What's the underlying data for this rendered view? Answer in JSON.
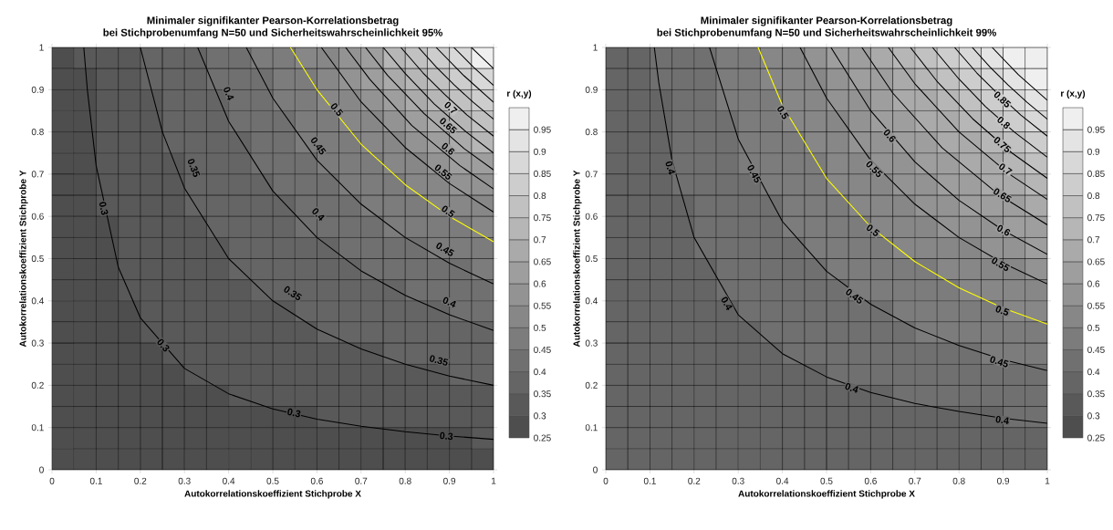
{
  "chart_data": [
    {
      "type": "heatmap",
      "title": "Minimaler signifikanter Pearson-Korrelationsbetrag",
      "subtitle": "bei Stichprobenumfang N=50 und Sicherheitswahrscheinlichkeit 95%",
      "grid": true,
      "xlabel": "Autokorrelationskoeffizient Stichprobe X",
      "ylabel": "Autokorrelationskoeffizient Stichprobe Y",
      "clabel": "r (x,y)",
      "xlim": [
        0,
        1
      ],
      "ylim": [
        0,
        1
      ],
      "xticks": [
        0,
        0.1,
        0.2,
        0.3,
        0.4,
        0.5,
        0.6,
        0.7,
        0.8,
        0.9,
        1
      ],
      "yticks": [
        0,
        0.1,
        0.2,
        0.3,
        0.4,
        0.5,
        0.6,
        0.7,
        0.8,
        0.9,
        1
      ],
      "clim": [
        0.25,
        1
      ],
      "cticks": [
        0.25,
        0.3,
        0.35,
        0.4,
        0.45,
        0.5,
        0.55,
        0.6,
        0.65,
        0.7,
        0.75,
        0.8,
        0.85,
        0.9,
        0.95
      ],
      "cells": [
        [
          0.275,
          0.325,
          0.325,
          0.325,
          0.375,
          0.375,
          0.375,
          0.425,
          0.425,
          0.475,
          0.475,
          0.525,
          0.525,
          0.575,
          0.625,
          0.725,
          0.775,
          0.825,
          0.875,
          0.975
        ],
        [
          0.275,
          0.275,
          0.325,
          0.325,
          0.375,
          0.375,
          0.375,
          0.425,
          0.425,
          0.425,
          0.475,
          0.475,
          0.525,
          0.575,
          0.625,
          0.675,
          0.725,
          0.775,
          0.825,
          0.875
        ],
        [
          0.275,
          0.275,
          0.325,
          0.325,
          0.325,
          0.375,
          0.375,
          0.375,
          0.425,
          0.425,
          0.475,
          0.475,
          0.525,
          0.525,
          0.575,
          0.625,
          0.675,
          0.725,
          0.775,
          0.825
        ],
        [
          0.275,
          0.275,
          0.325,
          0.325,
          0.325,
          0.375,
          0.375,
          0.375,
          0.425,
          0.425,
          0.425,
          0.475,
          0.475,
          0.525,
          0.525,
          0.575,
          0.625,
          0.675,
          0.725,
          0.775
        ],
        [
          0.275,
          0.275,
          0.325,
          0.325,
          0.325,
          0.375,
          0.375,
          0.375,
          0.375,
          0.425,
          0.425,
          0.475,
          0.475,
          0.475,
          0.525,
          0.525,
          0.575,
          0.625,
          0.675,
          0.725
        ],
        [
          0.275,
          0.275,
          0.325,
          0.325,
          0.325,
          0.325,
          0.375,
          0.375,
          0.375,
          0.425,
          0.425,
          0.425,
          0.475,
          0.475,
          0.475,
          0.525,
          0.525,
          0.575,
          0.625,
          0.625
        ],
        [
          0.275,
          0.275,
          0.325,
          0.325,
          0.325,
          0.325,
          0.375,
          0.375,
          0.375,
          0.375,
          0.425,
          0.425,
          0.425,
          0.475,
          0.475,
          0.475,
          0.525,
          0.525,
          0.575,
          0.575
        ],
        [
          0.275,
          0.275,
          0.325,
          0.325,
          0.325,
          0.325,
          0.375,
          0.375,
          0.375,
          0.375,
          0.375,
          0.425,
          0.425,
          0.425,
          0.475,
          0.475,
          0.475,
          0.525,
          0.525,
          0.525
        ],
        [
          0.275,
          0.275,
          0.275,
          0.325,
          0.325,
          0.325,
          0.325,
          0.375,
          0.375,
          0.375,
          0.375,
          0.425,
          0.425,
          0.425,
          0.425,
          0.475,
          0.475,
          0.475,
          0.475,
          0.525
        ],
        [
          0.275,
          0.275,
          0.275,
          0.325,
          0.325,
          0.325,
          0.325,
          0.325,
          0.375,
          0.375,
          0.375,
          0.375,
          0.375,
          0.425,
          0.425,
          0.425,
          0.425,
          0.475,
          0.475,
          0.475
        ],
        [
          0.275,
          0.275,
          0.275,
          0.325,
          0.325,
          0.325,
          0.325,
          0.325,
          0.375,
          0.375,
          0.375,
          0.375,
          0.375,
          0.375,
          0.425,
          0.425,
          0.425,
          0.425,
          0.425,
          0.475
        ],
        [
          0.275,
          0.275,
          0.275,
          0.325,
          0.325,
          0.325,
          0.325,
          0.325,
          0.325,
          0.375,
          0.375,
          0.375,
          0.375,
          0.375,
          0.375,
          0.375,
          0.425,
          0.425,
          0.425,
          0.425
        ],
        [
          0.275,
          0.275,
          0.275,
          0.275,
          0.325,
          0.325,
          0.325,
          0.325,
          0.325,
          0.325,
          0.325,
          0.375,
          0.375,
          0.375,
          0.375,
          0.375,
          0.375,
          0.375,
          0.425,
          0.425
        ],
        [
          0.275,
          0.275,
          0.275,
          0.275,
          0.325,
          0.325,
          0.325,
          0.325,
          0.325,
          0.325,
          0.325,
          0.325,
          0.375,
          0.375,
          0.375,
          0.375,
          0.375,
          0.375,
          0.375,
          0.375
        ],
        [
          0.275,
          0.275,
          0.275,
          0.275,
          0.275,
          0.325,
          0.325,
          0.325,
          0.325,
          0.325,
          0.325,
          0.325,
          0.325,
          0.325,
          0.325,
          0.375,
          0.375,
          0.375,
          0.375,
          0.375
        ],
        [
          0.275,
          0.275,
          0.275,
          0.275,
          0.275,
          0.275,
          0.325,
          0.325,
          0.325,
          0.325,
          0.325,
          0.325,
          0.325,
          0.325,
          0.325,
          0.325,
          0.325,
          0.325,
          0.375,
          0.375
        ],
        [
          0.275,
          0.275,
          0.275,
          0.275,
          0.275,
          0.275,
          0.275,
          0.275,
          0.325,
          0.325,
          0.325,
          0.325,
          0.325,
          0.325,
          0.325,
          0.325,
          0.325,
          0.325,
          0.325,
          0.325
        ],
        [
          0.275,
          0.275,
          0.275,
          0.275,
          0.275,
          0.275,
          0.275,
          0.275,
          0.275,
          0.275,
          0.275,
          0.275,
          0.325,
          0.325,
          0.325,
          0.325,
          0.325,
          0.325,
          0.325,
          0.325
        ],
        [
          0.275,
          0.275,
          0.275,
          0.275,
          0.275,
          0.275,
          0.275,
          0.275,
          0.275,
          0.275,
          0.275,
          0.275,
          0.275,
          0.275,
          0.275,
          0.275,
          0.275,
          0.275,
          0.275,
          0.325
        ],
        [
          0.275,
          0.275,
          0.275,
          0.275,
          0.275,
          0.275,
          0.275,
          0.275,
          0.275,
          0.275,
          0.275,
          0.275,
          0.275,
          0.275,
          0.275,
          0.275,
          0.275,
          0.275,
          0.275,
          0.275
        ]
      ],
      "series": [
        {
          "type": "line",
          "color": "#000000",
          "x": [
            0.072,
            0.08,
            0.1,
            0.15,
            0.2,
            0.3,
            0.4,
            0.5,
            0.6,
            0.7,
            0.8,
            0.9,
            1
          ],
          "values": [
            1,
            0.9,
            0.72,
            0.48,
            0.36,
            0.24,
            0.18,
            0.144,
            0.12,
            0.103,
            0.09,
            0.08,
            0.072
          ]
        },
        {
          "type": "line",
          "color": "#000000",
          "x": [
            0.2,
            0.25,
            0.3,
            0.4,
            0.5,
            0.6,
            0.7,
            0.8,
            0.9,
            1
          ],
          "values": [
            1,
            0.8,
            0.667,
            0.5,
            0.4,
            0.333,
            0.286,
            0.25,
            0.222,
            0.2
          ]
        },
        {
          "type": "line",
          "color": "#000000",
          "x": [
            0.33,
            0.4,
            0.5,
            0.6,
            0.7,
            0.8,
            0.9,
            1
          ],
          "values": [
            1,
            0.825,
            0.66,
            0.55,
            0.471,
            0.413,
            0.367,
            0.33
          ]
        },
        {
          "type": "line",
          "color": "#000000",
          "x": [
            0.44,
            0.5,
            0.6,
            0.7,
            0.8,
            0.9,
            1
          ],
          "values": [
            1,
            0.88,
            0.733,
            0.629,
            0.55,
            0.489,
            0.44
          ]
        },
        {
          "type": "line",
          "color": "#ffff00",
          "x": [
            0.54,
            0.6,
            0.7,
            0.8,
            0.9,
            1
          ],
          "values": [
            1,
            0.9,
            0.771,
            0.675,
            0.6,
            0.54
          ]
        },
        {
          "type": "line",
          "color": "#000000",
          "x": [
            0.61,
            0.7,
            0.8,
            0.9,
            1
          ],
          "values": [
            1,
            0.871,
            0.763,
            0.678,
            0.61
          ]
        },
        {
          "type": "line",
          "color": "#000000",
          "x": [
            0.665,
            0.72,
            0.815,
            0.924,
            1
          ],
          "values": [
            1,
            0.924,
            0.815,
            0.72,
            0.665
          ]
        },
        {
          "type": "line",
          "color": "#000000",
          "x": [
            0.71,
            0.76,
            0.843,
            0.934,
            1
          ],
          "values": [
            1,
            0.934,
            0.843,
            0.76,
            0.71
          ]
        },
        {
          "type": "line",
          "color": "#000000",
          "x": [
            0.75,
            0.8,
            0.866,
            0.938,
            1
          ],
          "values": [
            1,
            0.938,
            0.866,
            0.8,
            0.75
          ]
        },
        {
          "type": "line",
          "color": "#000000",
          "x": [
            0.79,
            0.84,
            0.889,
            0.94,
            1
          ],
          "values": [
            1,
            0.94,
            0.889,
            0.84,
            0.79
          ]
        },
        {
          "type": "line",
          "color": "#000000",
          "x": [
            0.83,
            0.87,
            0.911,
            0.954,
            1
          ],
          "values": [
            1,
            0.954,
            0.911,
            0.87,
            0.83
          ]
        },
        {
          "type": "line",
          "color": "#000000",
          "x": [
            0.87,
            0.933,
            1
          ],
          "values": [
            1,
            0.933,
            0.87
          ]
        },
        {
          "type": "line",
          "color": "#000000",
          "x": [
            0.91,
            0.954,
            1
          ],
          "values": [
            1,
            0.954,
            0.91
          ]
        },
        {
          "type": "line",
          "color": "#000000",
          "x": [
            0.95,
            0.975,
            1
          ],
          "values": [
            1,
            0.975,
            0.95
          ]
        }
      ],
      "annotations": [
        {
          "text": "0.3",
          "x": 0.117,
          "y": 0.619
        },
        {
          "text": "0.3",
          "x": 0.252,
          "y": 0.295
        },
        {
          "text": "0.3",
          "x": 0.548,
          "y": 0.135
        },
        {
          "text": "0.3",
          "x": 0.893,
          "y": 0.08
        },
        {
          "text": "0.35",
          "x": 0.321,
          "y": 0.715
        },
        {
          "text": "0.35",
          "x": 0.545,
          "y": 0.418
        },
        {
          "text": "0.35",
          "x": 0.876,
          "y": 0.259
        },
        {
          "text": "0.4",
          "x": 0.4,
          "y": 0.891
        },
        {
          "text": "0.4",
          "x": 0.603,
          "y": 0.605
        },
        {
          "text": "0.4",
          "x": 0.9,
          "y": 0.397
        },
        {
          "text": "0.45",
          "x": 0.603,
          "y": 0.767
        },
        {
          "text": "0.45",
          "x": 0.89,
          "y": 0.522
        },
        {
          "text": "0.5",
          "x": 0.645,
          "y": 0.853
        },
        {
          "text": "0.5",
          "x": 0.897,
          "y": 0.612
        },
        {
          "text": "0.55",
          "x": 0.886,
          "y": 0.705
        },
        {
          "text": "0.6",
          "x": 0.897,
          "y": 0.76
        },
        {
          "text": "0.65",
          "x": 0.897,
          "y": 0.815
        },
        {
          "text": "0.7",
          "x": 0.903,
          "y": 0.857
        }
      ]
    },
    {
      "type": "heatmap",
      "title": "Minimaler signifikanter Pearson-Korrelationsbetrag",
      "subtitle": "bei Stichprobenumfang N=50 und Sicherheitswahrscheinlichkeit 99%",
      "grid": true,
      "xlabel": "Autokorrelationskoeffizient Stichprobe X",
      "ylabel": "Autokorrelationskoeffizient Stichprobe Y",
      "clabel": "r (x,y)",
      "xlim": [
        0,
        1
      ],
      "ylim": [
        0,
        1
      ],
      "xticks": [
        0,
        0.1,
        0.2,
        0.3,
        0.4,
        0.5,
        0.6,
        0.7,
        0.8,
        0.9,
        1
      ],
      "yticks": [
        0,
        0.1,
        0.2,
        0.3,
        0.4,
        0.5,
        0.6,
        0.7,
        0.8,
        0.9,
        1
      ],
      "clim": [
        0.25,
        1
      ],
      "cticks": [
        0.25,
        0.3,
        0.35,
        0.4,
        0.45,
        0.5,
        0.55,
        0.6,
        0.65,
        0.7,
        0.75,
        0.8,
        0.85,
        0.9,
        0.95
      ],
      "cells": [
        [
          0.375,
          0.375,
          0.425,
          0.425,
          0.425,
          0.475,
          0.475,
          0.525,
          0.525,
          0.575,
          0.625,
          0.625,
          0.675,
          0.725,
          0.775,
          0.825,
          0.875,
          0.925,
          0.975,
          0.975
        ],
        [
          0.375,
          0.375,
          0.425,
          0.425,
          0.425,
          0.475,
          0.475,
          0.525,
          0.525,
          0.525,
          0.575,
          0.625,
          0.625,
          0.675,
          0.725,
          0.775,
          0.825,
          0.875,
          0.925,
          0.975
        ],
        [
          0.375,
          0.375,
          0.375,
          0.425,
          0.425,
          0.475,
          0.475,
          0.475,
          0.525,
          0.525,
          0.575,
          0.575,
          0.625,
          0.675,
          0.675,
          0.725,
          0.775,
          0.825,
          0.875,
          0.925
        ],
        [
          0.375,
          0.375,
          0.375,
          0.425,
          0.425,
          0.425,
          0.475,
          0.475,
          0.525,
          0.525,
          0.525,
          0.575,
          0.625,
          0.625,
          0.675,
          0.675,
          0.725,
          0.775,
          0.825,
          0.875
        ],
        [
          0.375,
          0.375,
          0.375,
          0.425,
          0.425,
          0.425,
          0.475,
          0.475,
          0.475,
          0.525,
          0.525,
          0.575,
          0.575,
          0.625,
          0.625,
          0.675,
          0.675,
          0.725,
          0.775,
          0.825
        ],
        [
          0.375,
          0.375,
          0.375,
          0.425,
          0.425,
          0.425,
          0.475,
          0.475,
          0.475,
          0.475,
          0.525,
          0.525,
          0.575,
          0.575,
          0.625,
          0.625,
          0.675,
          0.675,
          0.725,
          0.775
        ],
        [
          0.375,
          0.375,
          0.375,
          0.425,
          0.425,
          0.425,
          0.425,
          0.475,
          0.475,
          0.475,
          0.525,
          0.525,
          0.525,
          0.575,
          0.575,
          0.625,
          0.625,
          0.675,
          0.675,
          0.725
        ],
        [
          0.375,
          0.375,
          0.375,
          0.375,
          0.425,
          0.425,
          0.425,
          0.425,
          0.475,
          0.475,
          0.475,
          0.525,
          0.525,
          0.525,
          0.575,
          0.575,
          0.625,
          0.625,
          0.625,
          0.675
        ],
        [
          0.375,
          0.375,
          0.375,
          0.375,
          0.425,
          0.425,
          0.425,
          0.425,
          0.475,
          0.475,
          0.475,
          0.475,
          0.525,
          0.525,
          0.525,
          0.575,
          0.575,
          0.575,
          0.625,
          0.625
        ],
        [
          0.375,
          0.375,
          0.375,
          0.375,
          0.425,
          0.425,
          0.425,
          0.425,
          0.425,
          0.475,
          0.475,
          0.475,
          0.475,
          0.525,
          0.525,
          0.525,
          0.525,
          0.575,
          0.575,
          0.625
        ],
        [
          0.375,
          0.375,
          0.375,
          0.375,
          0.375,
          0.425,
          0.425,
          0.425,
          0.425,
          0.425,
          0.475,
          0.475,
          0.475,
          0.475,
          0.475,
          0.525,
          0.525,
          0.525,
          0.525,
          0.575
        ],
        [
          0.375,
          0.375,
          0.375,
          0.375,
          0.375,
          0.425,
          0.425,
          0.425,
          0.425,
          0.425,
          0.425,
          0.475,
          0.475,
          0.475,
          0.475,
          0.475,
          0.525,
          0.525,
          0.525,
          0.525
        ],
        [
          0.375,
          0.375,
          0.375,
          0.375,
          0.375,
          0.375,
          0.425,
          0.425,
          0.425,
          0.425,
          0.425,
          0.425,
          0.425,
          0.475,
          0.475,
          0.475,
          0.475,
          0.475,
          0.525,
          0.525
        ],
        [
          0.375,
          0.375,
          0.375,
          0.375,
          0.375,
          0.375,
          0.375,
          0.425,
          0.425,
          0.425,
          0.425,
          0.425,
          0.425,
          0.425,
          0.475,
          0.475,
          0.475,
          0.475,
          0.475,
          0.475
        ],
        [
          0.375,
          0.375,
          0.375,
          0.375,
          0.375,
          0.375,
          0.375,
          0.375,
          0.425,
          0.425,
          0.425,
          0.425,
          0.425,
          0.425,
          0.425,
          0.425,
          0.425,
          0.475,
          0.475,
          0.475
        ],
        [
          0.375,
          0.375,
          0.375,
          0.375,
          0.375,
          0.375,
          0.375,
          0.375,
          0.375,
          0.375,
          0.425,
          0.425,
          0.425,
          0.425,
          0.425,
          0.425,
          0.425,
          0.425,
          0.425,
          0.425
        ],
        [
          0.375,
          0.375,
          0.375,
          0.375,
          0.375,
          0.375,
          0.375,
          0.375,
          0.375,
          0.375,
          0.375,
          0.375,
          0.375,
          0.425,
          0.425,
          0.425,
          0.425,
          0.425,
          0.425,
          0.425
        ],
        [
          0.375,
          0.375,
          0.375,
          0.375,
          0.375,
          0.375,
          0.375,
          0.375,
          0.375,
          0.375,
          0.375,
          0.375,
          0.375,
          0.375,
          0.375,
          0.375,
          0.375,
          0.375,
          0.425,
          0.425
        ],
        [
          0.375,
          0.375,
          0.375,
          0.375,
          0.375,
          0.375,
          0.375,
          0.375,
          0.375,
          0.375,
          0.375,
          0.375,
          0.375,
          0.375,
          0.375,
          0.375,
          0.375,
          0.375,
          0.375,
          0.375
        ],
        [
          0.375,
          0.375,
          0.375,
          0.375,
          0.375,
          0.375,
          0.375,
          0.375,
          0.375,
          0.375,
          0.375,
          0.375,
          0.375,
          0.375,
          0.375,
          0.375,
          0.375,
          0.375,
          0.375,
          0.375
        ]
      ],
      "series": [
        {
          "type": "line",
          "color": "#000000",
          "x": [
            0.11,
            0.12,
            0.15,
            0.2,
            0.3,
            0.4,
            0.5,
            0.6,
            0.7,
            0.8,
            0.9,
            1
          ],
          "values": [
            1,
            0.917,
            0.733,
            0.55,
            0.367,
            0.275,
            0.22,
            0.183,
            0.157,
            0.138,
            0.122,
            0.11
          ]
        },
        {
          "type": "line",
          "color": "#000000",
          "x": [
            0.235,
            0.3,
            0.4,
            0.5,
            0.6,
            0.7,
            0.8,
            0.9,
            1
          ],
          "values": [
            1,
            0.783,
            0.588,
            0.47,
            0.392,
            0.336,
            0.294,
            0.261,
            0.235
          ]
        },
        {
          "type": "line",
          "color": "#ffff00",
          "x": [
            0.345,
            0.4,
            0.5,
            0.6,
            0.7,
            0.8,
            0.9,
            1
          ],
          "values": [
            1,
            0.863,
            0.69,
            0.575,
            0.493,
            0.431,
            0.383,
            0.345
          ]
        },
        {
          "type": "line",
          "color": "#000000",
          "x": [
            0.44,
            0.5,
            0.6,
            0.7,
            0.8,
            0.9,
            1
          ],
          "values": [
            1,
            0.88,
            0.733,
            0.629,
            0.55,
            0.489,
            0.44
          ]
        },
        {
          "type": "line",
          "color": "#000000",
          "x": [
            0.51,
            0.6,
            0.7,
            0.8,
            0.9,
            1
          ],
          "values": [
            1,
            0.85,
            0.729,
            0.638,
            0.567,
            0.51
          ]
        },
        {
          "type": "line",
          "color": "#000000",
          "x": [
            0.58,
            0.65,
            0.762,
            0.892,
            1
          ],
          "values": [
            1,
            0.892,
            0.762,
            0.65,
            0.58
          ]
        },
        {
          "type": "line",
          "color": "#000000",
          "x": [
            0.64,
            0.7,
            0.8,
            0.914,
            1
          ],
          "values": [
            1,
            0.914,
            0.8,
            0.7,
            0.64
          ]
        },
        {
          "type": "line",
          "color": "#000000",
          "x": [
            0.69,
            0.75,
            0.831,
            0.92,
            1
          ],
          "values": [
            1,
            0.92,
            0.831,
            0.75,
            0.69
          ]
        },
        {
          "type": "line",
          "color": "#000000",
          "x": [
            0.74,
            0.8,
            0.86,
            0.925,
            1
          ],
          "values": [
            1,
            0.925,
            0.86,
            0.8,
            0.74
          ]
        },
        {
          "type": "line",
          "color": "#000000",
          "x": [
            0.79,
            0.84,
            0.889,
            0.94,
            1
          ],
          "values": [
            1,
            0.94,
            0.889,
            0.84,
            0.79
          ]
        },
        {
          "type": "line",
          "color": "#000000",
          "x": [
            0.83,
            0.87,
            0.911,
            0.954,
            1
          ],
          "values": [
            1,
            0.954,
            0.911,
            0.87,
            0.83
          ]
        },
        {
          "type": "line",
          "color": "#000000",
          "x": [
            0.875,
            0.935,
            1
          ],
          "values": [
            1,
            0.935,
            0.875
          ]
        }
      ],
      "annotations": [
        {
          "text": "0.4",
          "x": 0.146,
          "y": 0.715
        },
        {
          "text": "0.4",
          "x": 0.274,
          "y": 0.394
        },
        {
          "text": "0.4",
          "x": 0.557,
          "y": 0.194
        },
        {
          "text": "0.4",
          "x": 0.898,
          "y": 0.118
        },
        {
          "text": "0.45",
          "x": 0.336,
          "y": 0.701
        },
        {
          "text": "0.45",
          "x": 0.563,
          "y": 0.411
        },
        {
          "text": "0.45",
          "x": 0.891,
          "y": 0.256
        },
        {
          "text": "0.5",
          "x": 0.401,
          "y": 0.846
        },
        {
          "text": "0.5",
          "x": 0.605,
          "y": 0.567
        },
        {
          "text": "0.5",
          "x": 0.898,
          "y": 0.377
        },
        {
          "text": "0.55",
          "x": 0.608,
          "y": 0.712
        },
        {
          "text": "0.55",
          "x": 0.894,
          "y": 0.487
        },
        {
          "text": "0.6",
          "x": 0.643,
          "y": 0.791
        },
        {
          "text": "0.6",
          "x": 0.901,
          "y": 0.567
        },
        {
          "text": "0.65",
          "x": 0.898,
          "y": 0.65
        },
        {
          "text": "0.7",
          "x": 0.905,
          "y": 0.712
        },
        {
          "text": "0.75",
          "x": 0.898,
          "y": 0.77
        },
        {
          "text": "0.8",
          "x": 0.901,
          "y": 0.822
        },
        {
          "text": "0.85",
          "x": 0.898,
          "y": 0.877
        }
      ]
    }
  ]
}
